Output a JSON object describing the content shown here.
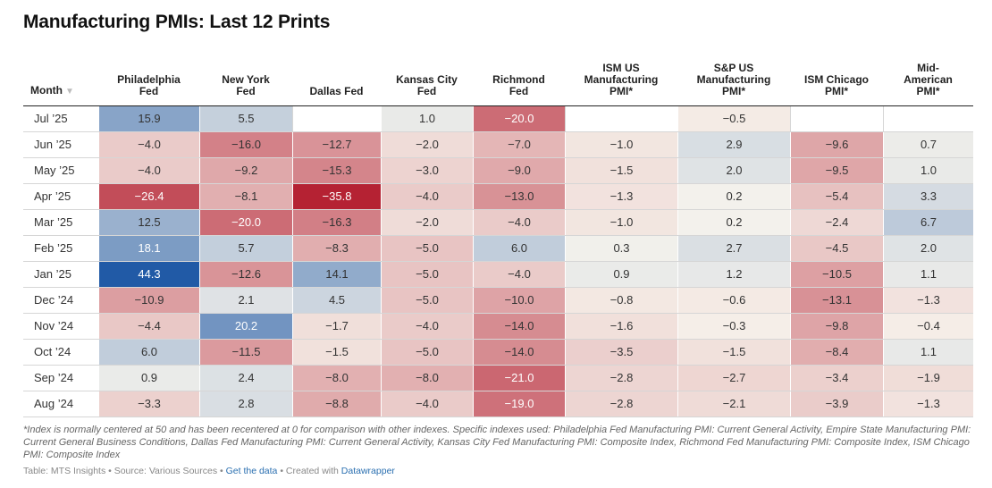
{
  "title": "Manufacturing PMIs: Last 12 Prints",
  "chart_data": {
    "type": "table",
    "title": "Manufacturing PMIs: Last 12 Prints",
    "month_header": "Month",
    "sort_icon": "▼",
    "columns": [
      {
        "key": "philly",
        "lines": [
          "Philadelphia",
          "Fed"
        ]
      },
      {
        "key": "ny",
        "lines": [
          "New York",
          "Fed"
        ]
      },
      {
        "key": "dallas",
        "lines": [
          "Dallas Fed"
        ]
      },
      {
        "key": "kc",
        "lines": [
          "Kansas City",
          "Fed"
        ]
      },
      {
        "key": "richmond",
        "lines": [
          "Richmond",
          "Fed"
        ]
      },
      {
        "key": "ism",
        "lines": [
          "ISM US",
          "Manufacturing",
          "PMI*"
        ]
      },
      {
        "key": "sp",
        "lines": [
          "S&P US",
          "Manufacturing",
          "PMI*"
        ]
      },
      {
        "key": "chicago",
        "lines": [
          "ISM Chicago",
          "PMI*"
        ]
      },
      {
        "key": "midam",
        "lines": [
          "Mid-",
          "American",
          "PMI*"
        ]
      }
    ],
    "rows": [
      {
        "month": "Jul ’25",
        "values": [
          15.9,
          5.5,
          null,
          1.0,
          -20.0,
          null,
          -0.5,
          null,
          null
        ]
      },
      {
        "month": "Jun ’25",
        "values": [
          -4.0,
          -16.0,
          -12.7,
          -2.0,
          -7.0,
          -1.0,
          2.9,
          -9.6,
          0.7
        ]
      },
      {
        "month": "May ’25",
        "values": [
          -4.0,
          -9.2,
          -15.3,
          -3.0,
          -9.0,
          -1.5,
          2.0,
          -9.5,
          1.0
        ]
      },
      {
        "month": "Apr ’25",
        "values": [
          -26.4,
          -8.1,
          -35.8,
          -4.0,
          -13.0,
          -1.3,
          0.2,
          -5.4,
          3.3
        ]
      },
      {
        "month": "Mar ’25",
        "values": [
          12.5,
          -20.0,
          -16.3,
          -2.0,
          -4.0,
          -1.0,
          0.2,
          -2.4,
          6.7
        ]
      },
      {
        "month": "Feb ’25",
        "values": [
          18.1,
          5.7,
          -8.3,
          -5.0,
          6.0,
          0.3,
          2.7,
          -4.5,
          2.0
        ]
      },
      {
        "month": "Jan ’25",
        "values": [
          44.3,
          -12.6,
          14.1,
          -5.0,
          -4.0,
          0.9,
          1.2,
          -10.5,
          1.1
        ]
      },
      {
        "month": "Dec ’24",
        "values": [
          -10.9,
          2.1,
          4.5,
          -5.0,
          -10.0,
          -0.8,
          -0.6,
          -13.1,
          -1.3
        ]
      },
      {
        "month": "Nov ’24",
        "values": [
          -4.4,
          20.2,
          -1.7,
          -4.0,
          -14.0,
          -1.6,
          -0.3,
          -9.8,
          -0.4
        ]
      },
      {
        "month": "Oct ’24",
        "values": [
          6.0,
          -11.5,
          -1.5,
          -5.0,
          -14.0,
          -3.5,
          -1.5,
          -8.4,
          1.1
        ]
      },
      {
        "month": "Sep ’24",
        "values": [
          0.9,
          2.4,
          -8.0,
          -8.0,
          -21.0,
          -2.8,
          -2.7,
          -3.4,
          -1.9
        ]
      },
      {
        "month": "Aug ’24",
        "values": [
          -3.3,
          2.8,
          -8.8,
          -4.0,
          -19.0,
          -2.8,
          -2.1,
          -3.9,
          -1.3
        ]
      }
    ]
  },
  "colors": {
    "positive": "#2f5f9f",
    "negative": "#b5202e",
    "neutral": "#f6f4ee"
  },
  "footnote": "*Index is normally centered at 50 and has been recentered at 0 for comparison with other indexes. Specific indexes used: Philadelphia Fed Manufacturing PMI: Current General Activity, Empire State Manufacturing PMI: Current General Business Conditions, Dallas Fed Manufacturing PMI: Current General Activity, Kansas City Fed Manufacturing PMI: Composite Index, Richmond Fed Manufacturing PMI: Composite Index, ISM Chicago PMI: Composite Index",
  "source": {
    "table_label": "Table: MTS Insights",
    "sep": " • ",
    "source_label": "Source: Various Sources",
    "data_link": "Get the data",
    "created": "Created with ",
    "tool_link": "Datawrapper"
  }
}
